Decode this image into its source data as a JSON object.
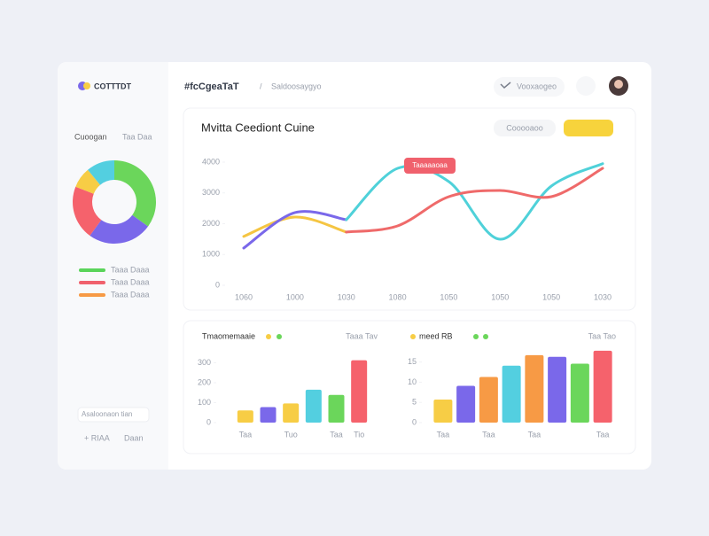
{
  "header": {
    "brand": "COTTTDT",
    "breadcrumb": "#fcCgeaTaT",
    "crumb_sub": "Saldoosaygyo",
    "menu": "Vooxaogeo"
  },
  "sidebar": {
    "title": "Cuoogan",
    "title_note": "Taa Daa",
    "legend": [
      {
        "label": "Taaa Daaa",
        "color": "#5ad45a"
      },
      {
        "label": "Taaa Daaa",
        "color": "#f0616d"
      },
      {
        "label": "Taaa Daaa",
        "color": "#f79a45"
      }
    ],
    "search": "Asaloonaon tian",
    "footer": [
      "+ RIAA",
      "Daan"
    ]
  },
  "chart_data": [
    {
      "type": "pie",
      "values": [
        35,
        25,
        21,
        8,
        11
      ],
      "colors": [
        "#6bd65b",
        "#7a68ea",
        "#f5626c",
        "#f7cd45",
        "#53cfe0"
      ]
    },
    {
      "type": "line",
      "title": "Mvitta Ceediont Cuine",
      "filter": "Cooooaoo",
      "annotation": "Taaaaaoaa",
      "categories": [
        "1060",
        "1000",
        "1030",
        "1080",
        "1050",
        "1050",
        "1050",
        "1030"
      ],
      "series": [
        {
          "color": "#f5c542",
          "values": [
            1587,
            2216,
            1727,
            null,
            null,
            null,
            null,
            null
          ]
        },
        {
          "color": "#7a68ea",
          "values": [
            1209,
            2360,
            2129,
            null,
            null,
            null,
            null,
            null
          ]
        },
        {
          "color": "#4fd1d9",
          "values": [
            null,
            null,
            2129,
            3799,
            3367,
            1496,
            3223,
            3950
          ]
        },
        {
          "color": "#ef6a6a",
          "values": [
            null,
            null,
            1727,
            1928,
            2878,
            3079,
            2878,
            3800
          ]
        }
      ],
      "ylim": [
        0,
        4000
      ],
      "yticks": [
        0,
        1000,
        2000,
        3000,
        4000
      ]
    },
    {
      "type": "bar",
      "title": "Tmaomemaaie",
      "note": "Taaa Tav",
      "categories": [
        "Taa",
        null,
        "Tuo",
        null,
        "Taa",
        "Tio"
      ],
      "values": [
        61,
        78,
        96,
        165,
        139,
        313
      ],
      "colors": [
        "#f7cd45",
        "#7a68ea",
        "#f7cd45",
        "#53cfe0",
        "#6bd65b",
        "#f5626c"
      ],
      "ylim": [
        0,
        320
      ],
      "yticks": [
        0,
        100,
        200,
        300
      ]
    },
    {
      "type": "bar",
      "title": "meed RB",
      "note": "Taa Tao",
      "categories": [
        "Taa",
        null,
        "Taa",
        null,
        "Taa",
        null,
        null,
        "Taa"
      ],
      "values": [
        5.7,
        9.1,
        11.3,
        14.1,
        16.7,
        16.3,
        14.6,
        17.8
      ],
      "colors": [
        "#f7cd45",
        "#7a68ea",
        "#f79a45",
        "#53cfe0",
        "#f79a45",
        "#7a68ea",
        "#6bd65b",
        "#f5626c"
      ],
      "ylim": [
        0,
        18
      ],
      "yticks": [
        0,
        5,
        10,
        15
      ]
    }
  ]
}
